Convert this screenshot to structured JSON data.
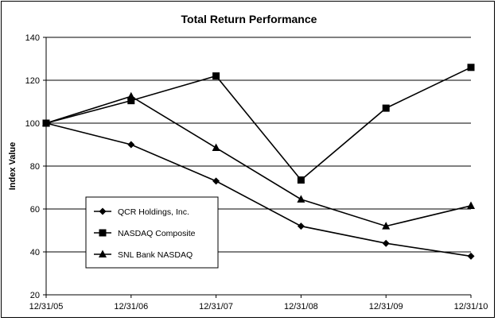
{
  "chart_data": {
    "type": "line",
    "title": "Total Return Performance",
    "xlabel": "",
    "ylabel": "Index Value",
    "categories": [
      "12/31/05",
      "12/31/06",
      "12/31/07",
      "12/31/08",
      "12/31/09",
      "12/31/10"
    ],
    "ylim": [
      20,
      140
    ],
    "yticks": [
      20,
      40,
      60,
      80,
      100,
      120,
      140
    ],
    "grid": true,
    "legend_position": "lower-left",
    "series": [
      {
        "name": "QCR Holdings, Inc.",
        "marker": "diamond",
        "values": [
          100,
          90,
          73,
          52,
          44,
          38
        ]
      },
      {
        "name": "NASDAQ Composite",
        "marker": "square",
        "values": [
          100,
          110.5,
          122,
          73.5,
          107,
          126
        ]
      },
      {
        "name": "SNL Bank NASDAQ",
        "marker": "triangle",
        "values": [
          100,
          112.5,
          88.5,
          64.5,
          52,
          61.5
        ]
      }
    ]
  }
}
